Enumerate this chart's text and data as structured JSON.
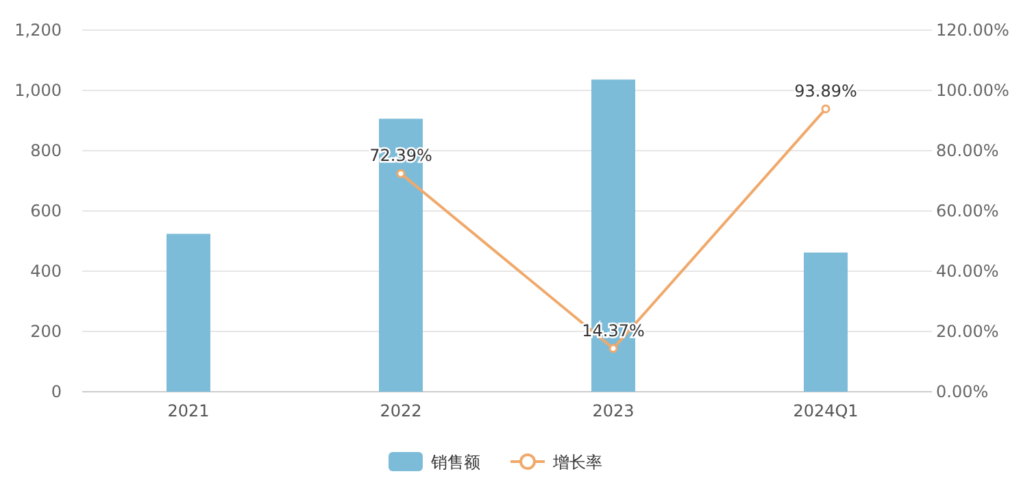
{
  "chart_data": {
    "type": "bar",
    "categories": [
      "2021",
      "2022",
      "2023",
      "2024Q1"
    ],
    "series": [
      {
        "name": "销售额",
        "color": "#7dbcd9",
        "values": [
          524,
          906,
          1036,
          462
        ]
      },
      {
        "name": "增长率",
        "type": "line",
        "axis": "y2",
        "color": "#f0a96b",
        "marker": "circle",
        "values": [
          null,
          72.39,
          14.37,
          93.89
        ],
        "value_labels": [
          null,
          "72.39%",
          "14.37%",
          "93.89%"
        ]
      }
    ],
    "ylim": [
      0,
      1200
    ],
    "yticks": [
      {
        "value": 0,
        "label": "0"
      },
      {
        "value": 200,
        "label": "200"
      },
      {
        "value": 400,
        "label": "400"
      },
      {
        "value": 600,
        "label": "600"
      },
      {
        "value": 800,
        "label": "800"
      },
      {
        "value": 1000,
        "label": "1,000"
      },
      {
        "value": 1200,
        "label": "1,200"
      }
    ],
    "y2lim": [
      0,
      120
    ],
    "y2ticks": [
      {
        "value": 0,
        "label": "0.00%"
      },
      {
        "value": 20,
        "label": "20.00%"
      },
      {
        "value": 40,
        "label": "40.00%"
      },
      {
        "value": 60,
        "label": "60.00%"
      },
      {
        "value": 80,
        "label": "80.00%"
      },
      {
        "value": 100,
        "label": "100.00%"
      },
      {
        "value": 120,
        "label": "120.00%"
      }
    ],
    "grid": "y",
    "legend": "bottom"
  }
}
